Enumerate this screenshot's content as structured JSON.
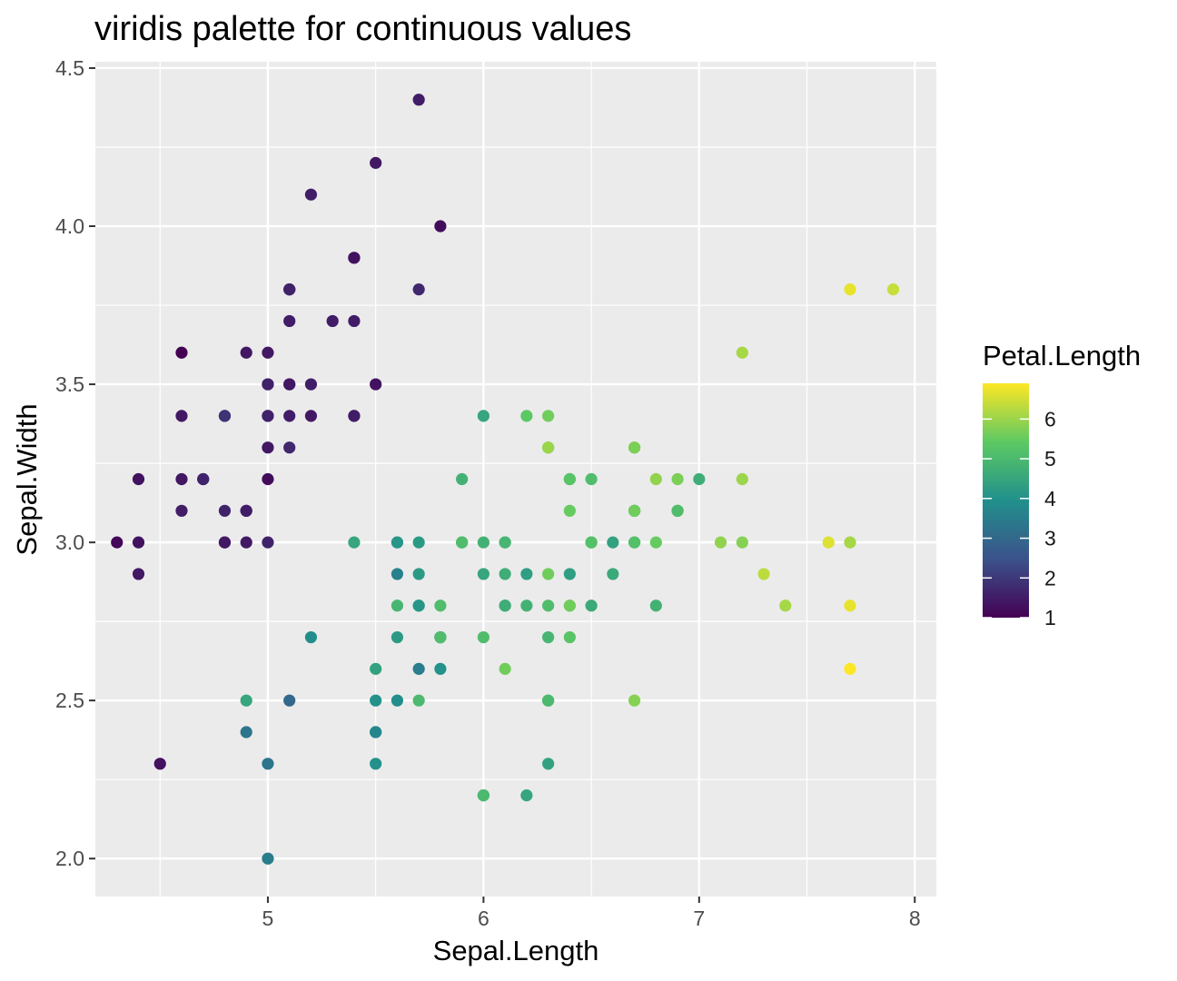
{
  "chart_data": {
    "type": "scatter",
    "title": "viridis palette for continuous values",
    "xlabel": "Sepal.Length",
    "ylabel": "Sepal.Width",
    "xlim": [
      4.2,
      8.1
    ],
    "ylim": [
      1.88,
      4.52
    ],
    "x_ticks": [
      5,
      6,
      7,
      8
    ],
    "y_ticks": [
      2.0,
      2.5,
      3.0,
      3.5,
      4.0,
      4.5
    ],
    "x_tick_labels": [
      "5",
      "6",
      "7",
      "8"
    ],
    "y_tick_labels": [
      "2.0",
      "2.5",
      "3.0",
      "3.5",
      "4.0",
      "4.5"
    ],
    "grid": true,
    "panel_background": "#ebebeb",
    "grid_color": "#ffffff",
    "palette": [
      "#440154",
      "#3b528b",
      "#21908c",
      "#5dc963",
      "#fde725"
    ],
    "color_variable": "Petal.Length",
    "color_range": [
      1.0,
      6.9
    ],
    "legend": {
      "title": "Petal.Length",
      "placement": "right",
      "breaks": [
        1,
        2,
        3,
        4,
        5,
        6
      ],
      "labels": [
        "1",
        "2",
        "3",
        "4",
        "5",
        "6"
      ]
    },
    "points": [
      {
        "x": 5.1,
        "y": 3.5,
        "c": 1.4
      },
      {
        "x": 4.9,
        "y": 3.0,
        "c": 1.4
      },
      {
        "x": 4.7,
        "y": 3.2,
        "c": 1.3
      },
      {
        "x": 4.6,
        "y": 3.1,
        "c": 1.5
      },
      {
        "x": 5.0,
        "y": 3.6,
        "c": 1.4
      },
      {
        "x": 5.4,
        "y": 3.9,
        "c": 1.7
      },
      {
        "x": 4.6,
        "y": 3.4,
        "c": 1.4
      },
      {
        "x": 5.0,
        "y": 3.4,
        "c": 1.5
      },
      {
        "x": 4.4,
        "y": 2.9,
        "c": 1.4
      },
      {
        "x": 4.9,
        "y": 3.1,
        "c": 1.5
      },
      {
        "x": 5.4,
        "y": 3.7,
        "c": 1.5
      },
      {
        "x": 4.8,
        "y": 3.4,
        "c": 1.6
      },
      {
        "x": 4.8,
        "y": 3.0,
        "c": 1.4
      },
      {
        "x": 4.3,
        "y": 3.0,
        "c": 1.1
      },
      {
        "x": 5.8,
        "y": 4.0,
        "c": 1.2
      },
      {
        "x": 5.7,
        "y": 4.4,
        "c": 1.5
      },
      {
        "x": 5.4,
        "y": 3.9,
        "c": 1.3
      },
      {
        "x": 5.1,
        "y": 3.5,
        "c": 1.4
      },
      {
        "x": 5.7,
        "y": 3.8,
        "c": 1.7
      },
      {
        "x": 5.1,
        "y": 3.8,
        "c": 1.5
      },
      {
        "x": 5.4,
        "y": 3.4,
        "c": 1.7
      },
      {
        "x": 5.1,
        "y": 3.7,
        "c": 1.5
      },
      {
        "x": 4.6,
        "y": 3.6,
        "c": 1.0
      },
      {
        "x": 5.1,
        "y": 3.3,
        "c": 1.7
      },
      {
        "x": 4.8,
        "y": 3.4,
        "c": 1.9
      },
      {
        "x": 5.0,
        "y": 3.0,
        "c": 1.6
      },
      {
        "x": 5.0,
        "y": 3.4,
        "c": 1.6
      },
      {
        "x": 5.2,
        "y": 3.5,
        "c": 1.5
      },
      {
        "x": 5.2,
        "y": 3.4,
        "c": 1.4
      },
      {
        "x": 4.7,
        "y": 3.2,
        "c": 1.6
      },
      {
        "x": 4.8,
        "y": 3.1,
        "c": 1.6
      },
      {
        "x": 5.4,
        "y": 3.4,
        "c": 1.5
      },
      {
        "x": 5.2,
        "y": 4.1,
        "c": 1.5
      },
      {
        "x": 5.5,
        "y": 4.2,
        "c": 1.4
      },
      {
        "x": 4.9,
        "y": 3.1,
        "c": 1.5
      },
      {
        "x": 5.0,
        "y": 3.2,
        "c": 1.2
      },
      {
        "x": 5.5,
        "y": 3.5,
        "c": 1.3
      },
      {
        "x": 4.9,
        "y": 3.6,
        "c": 1.4
      },
      {
        "x": 4.4,
        "y": 3.0,
        "c": 1.3
      },
      {
        "x": 5.1,
        "y": 3.4,
        "c": 1.5
      },
      {
        "x": 5.0,
        "y": 3.5,
        "c": 1.3
      },
      {
        "x": 4.5,
        "y": 2.3,
        "c": 1.3
      },
      {
        "x": 4.4,
        "y": 3.2,
        "c": 1.3
      },
      {
        "x": 5.0,
        "y": 3.5,
        "c": 1.6
      },
      {
        "x": 5.1,
        "y": 3.8,
        "c": 1.9
      },
      {
        "x": 4.8,
        "y": 3.0,
        "c": 1.4
      },
      {
        "x": 5.1,
        "y": 3.8,
        "c": 1.6
      },
      {
        "x": 4.6,
        "y": 3.2,
        "c": 1.4
      },
      {
        "x": 5.3,
        "y": 3.7,
        "c": 1.5
      },
      {
        "x": 5.0,
        "y": 3.3,
        "c": 1.4
      },
      {
        "x": 7.0,
        "y": 3.2,
        "c": 4.7
      },
      {
        "x": 6.4,
        "y": 3.2,
        "c": 4.5
      },
      {
        "x": 6.9,
        "y": 3.1,
        "c": 4.9
      },
      {
        "x": 5.5,
        "y": 2.3,
        "c": 4.0
      },
      {
        "x": 6.5,
        "y": 2.8,
        "c": 4.6
      },
      {
        "x": 5.7,
        "y": 2.8,
        "c": 4.5
      },
      {
        "x": 6.3,
        "y": 3.3,
        "c": 4.7
      },
      {
        "x": 4.9,
        "y": 2.4,
        "c": 3.3
      },
      {
        "x": 6.6,
        "y": 2.9,
        "c": 4.6
      },
      {
        "x": 5.2,
        "y": 2.7,
        "c": 3.9
      },
      {
        "x": 5.0,
        "y": 2.0,
        "c": 3.5
      },
      {
        "x": 5.9,
        "y": 3.0,
        "c": 4.2
      },
      {
        "x": 6.0,
        "y": 2.2,
        "c": 4.0
      },
      {
        "x": 6.1,
        "y": 2.9,
        "c": 4.7
      },
      {
        "x": 5.6,
        "y": 2.9,
        "c": 3.6
      },
      {
        "x": 6.7,
        "y": 3.1,
        "c": 4.4
      },
      {
        "x": 5.6,
        "y": 3.0,
        "c": 4.5
      },
      {
        "x": 5.8,
        "y": 2.7,
        "c": 4.1
      },
      {
        "x": 6.2,
        "y": 2.2,
        "c": 4.5
      },
      {
        "x": 5.6,
        "y": 2.5,
        "c": 3.9
      },
      {
        "x": 5.9,
        "y": 3.2,
        "c": 4.8
      },
      {
        "x": 6.1,
        "y": 2.8,
        "c": 4.0
      },
      {
        "x": 6.3,
        "y": 2.5,
        "c": 4.9
      },
      {
        "x": 6.1,
        "y": 2.8,
        "c": 4.7
      },
      {
        "x": 6.4,
        "y": 2.9,
        "c": 4.3
      },
      {
        "x": 6.6,
        "y": 3.0,
        "c": 4.4
      },
      {
        "x": 6.8,
        "y": 2.8,
        "c": 4.8
      },
      {
        "x": 6.7,
        "y": 3.0,
        "c": 5.0
      },
      {
        "x": 6.0,
        "y": 2.9,
        "c": 4.5
      },
      {
        "x": 5.7,
        "y": 2.6,
        "c": 3.5
      },
      {
        "x": 5.5,
        "y": 2.4,
        "c": 3.8
      },
      {
        "x": 5.5,
        "y": 2.4,
        "c": 3.7
      },
      {
        "x": 5.8,
        "y": 2.7,
        "c": 3.9
      },
      {
        "x": 6.0,
        "y": 2.7,
        "c": 5.1
      },
      {
        "x": 5.4,
        "y": 3.0,
        "c": 4.5
      },
      {
        "x": 6.0,
        "y": 3.4,
        "c": 4.5
      },
      {
        "x": 6.7,
        "y": 3.1,
        "c": 4.7
      },
      {
        "x": 6.3,
        "y": 2.3,
        "c": 4.4
      },
      {
        "x": 5.6,
        "y": 3.0,
        "c": 4.1
      },
      {
        "x": 5.5,
        "y": 2.5,
        "c": 4.0
      },
      {
        "x": 5.5,
        "y": 2.6,
        "c": 4.4
      },
      {
        "x": 6.1,
        "y": 3.0,
        "c": 4.6
      },
      {
        "x": 5.8,
        "y": 2.6,
        "c": 4.0
      },
      {
        "x": 5.0,
        "y": 2.3,
        "c": 3.3
      },
      {
        "x": 5.6,
        "y": 2.7,
        "c": 4.2
      },
      {
        "x": 5.7,
        "y": 3.0,
        "c": 4.2
      },
      {
        "x": 5.7,
        "y": 2.9,
        "c": 4.2
      },
      {
        "x": 6.2,
        "y": 2.9,
        "c": 4.3
      },
      {
        "x": 5.1,
        "y": 2.5,
        "c": 3.0
      },
      {
        "x": 5.7,
        "y": 2.8,
        "c": 4.1
      },
      {
        "x": 6.3,
        "y": 3.3,
        "c": 6.0
      },
      {
        "x": 5.8,
        "y": 2.7,
        "c": 5.1
      },
      {
        "x": 7.1,
        "y": 3.0,
        "c": 5.9
      },
      {
        "x": 6.3,
        "y": 2.9,
        "c": 5.6
      },
      {
        "x": 6.5,
        "y": 3.0,
        "c": 5.8
      },
      {
        "x": 7.6,
        "y": 3.0,
        "c": 6.6
      },
      {
        "x": 4.9,
        "y": 2.5,
        "c": 4.5
      },
      {
        "x": 7.3,
        "y": 2.9,
        "c": 6.3
      },
      {
        "x": 6.7,
        "y": 2.5,
        "c": 5.8
      },
      {
        "x": 7.2,
        "y": 3.6,
        "c": 6.1
      },
      {
        "x": 6.5,
        "y": 3.2,
        "c": 5.1
      },
      {
        "x": 6.4,
        "y": 2.7,
        "c": 5.3
      },
      {
        "x": 6.8,
        "y": 3.0,
        "c": 5.5
      },
      {
        "x": 5.7,
        "y": 2.5,
        "c": 5.0
      },
      {
        "x": 5.8,
        "y": 2.8,
        "c": 5.1
      },
      {
        "x": 6.4,
        "y": 3.2,
        "c": 5.3
      },
      {
        "x": 6.5,
        "y": 3.0,
        "c": 5.5
      },
      {
        "x": 7.7,
        "y": 3.8,
        "c": 6.7
      },
      {
        "x": 7.7,
        "y": 2.6,
        "c": 6.9
      },
      {
        "x": 6.0,
        "y": 2.2,
        "c": 5.0
      },
      {
        "x": 6.9,
        "y": 3.2,
        "c": 5.7
      },
      {
        "x": 5.6,
        "y": 2.8,
        "c": 4.9
      },
      {
        "x": 7.7,
        "y": 2.8,
        "c": 6.7
      },
      {
        "x": 6.3,
        "y": 2.7,
        "c": 4.9
      },
      {
        "x": 6.7,
        "y": 3.3,
        "c": 5.7
      },
      {
        "x": 7.2,
        "y": 3.2,
        "c": 6.0
      },
      {
        "x": 6.2,
        "y": 2.8,
        "c": 4.8
      },
      {
        "x": 6.1,
        "y": 3.0,
        "c": 4.9
      },
      {
        "x": 6.4,
        "y": 2.8,
        "c": 5.6
      },
      {
        "x": 7.2,
        "y": 3.0,
        "c": 5.8
      },
      {
        "x": 7.4,
        "y": 2.8,
        "c": 6.1
      },
      {
        "x": 7.9,
        "y": 3.8,
        "c": 6.4
      },
      {
        "x": 6.4,
        "y": 2.8,
        "c": 5.6
      },
      {
        "x": 6.3,
        "y": 2.8,
        "c": 5.1
      },
      {
        "x": 6.1,
        "y": 2.6,
        "c": 5.6
      },
      {
        "x": 7.7,
        "y": 3.0,
        "c": 6.1
      },
      {
        "x": 6.3,
        "y": 3.4,
        "c": 5.6
      },
      {
        "x": 6.4,
        "y": 3.1,
        "c": 5.5
      },
      {
        "x": 6.0,
        "y": 3.0,
        "c": 4.8
      },
      {
        "x": 6.9,
        "y": 3.1,
        "c": 5.4
      },
      {
        "x": 6.7,
        "y": 3.1,
        "c": 5.6
      },
      {
        "x": 6.9,
        "y": 3.1,
        "c": 5.1
      },
      {
        "x": 5.8,
        "y": 2.7,
        "c": 5.1
      },
      {
        "x": 6.8,
        "y": 3.2,
        "c": 5.9
      },
      {
        "x": 6.7,
        "y": 3.3,
        "c": 5.7
      },
      {
        "x": 6.7,
        "y": 3.0,
        "c": 5.2
      },
      {
        "x": 6.3,
        "y": 2.5,
        "c": 5.0
      },
      {
        "x": 6.5,
        "y": 3.0,
        "c": 5.2
      },
      {
        "x": 6.2,
        "y": 3.4,
        "c": 5.4
      },
      {
        "x": 5.9,
        "y": 3.0,
        "c": 5.1
      }
    ]
  }
}
